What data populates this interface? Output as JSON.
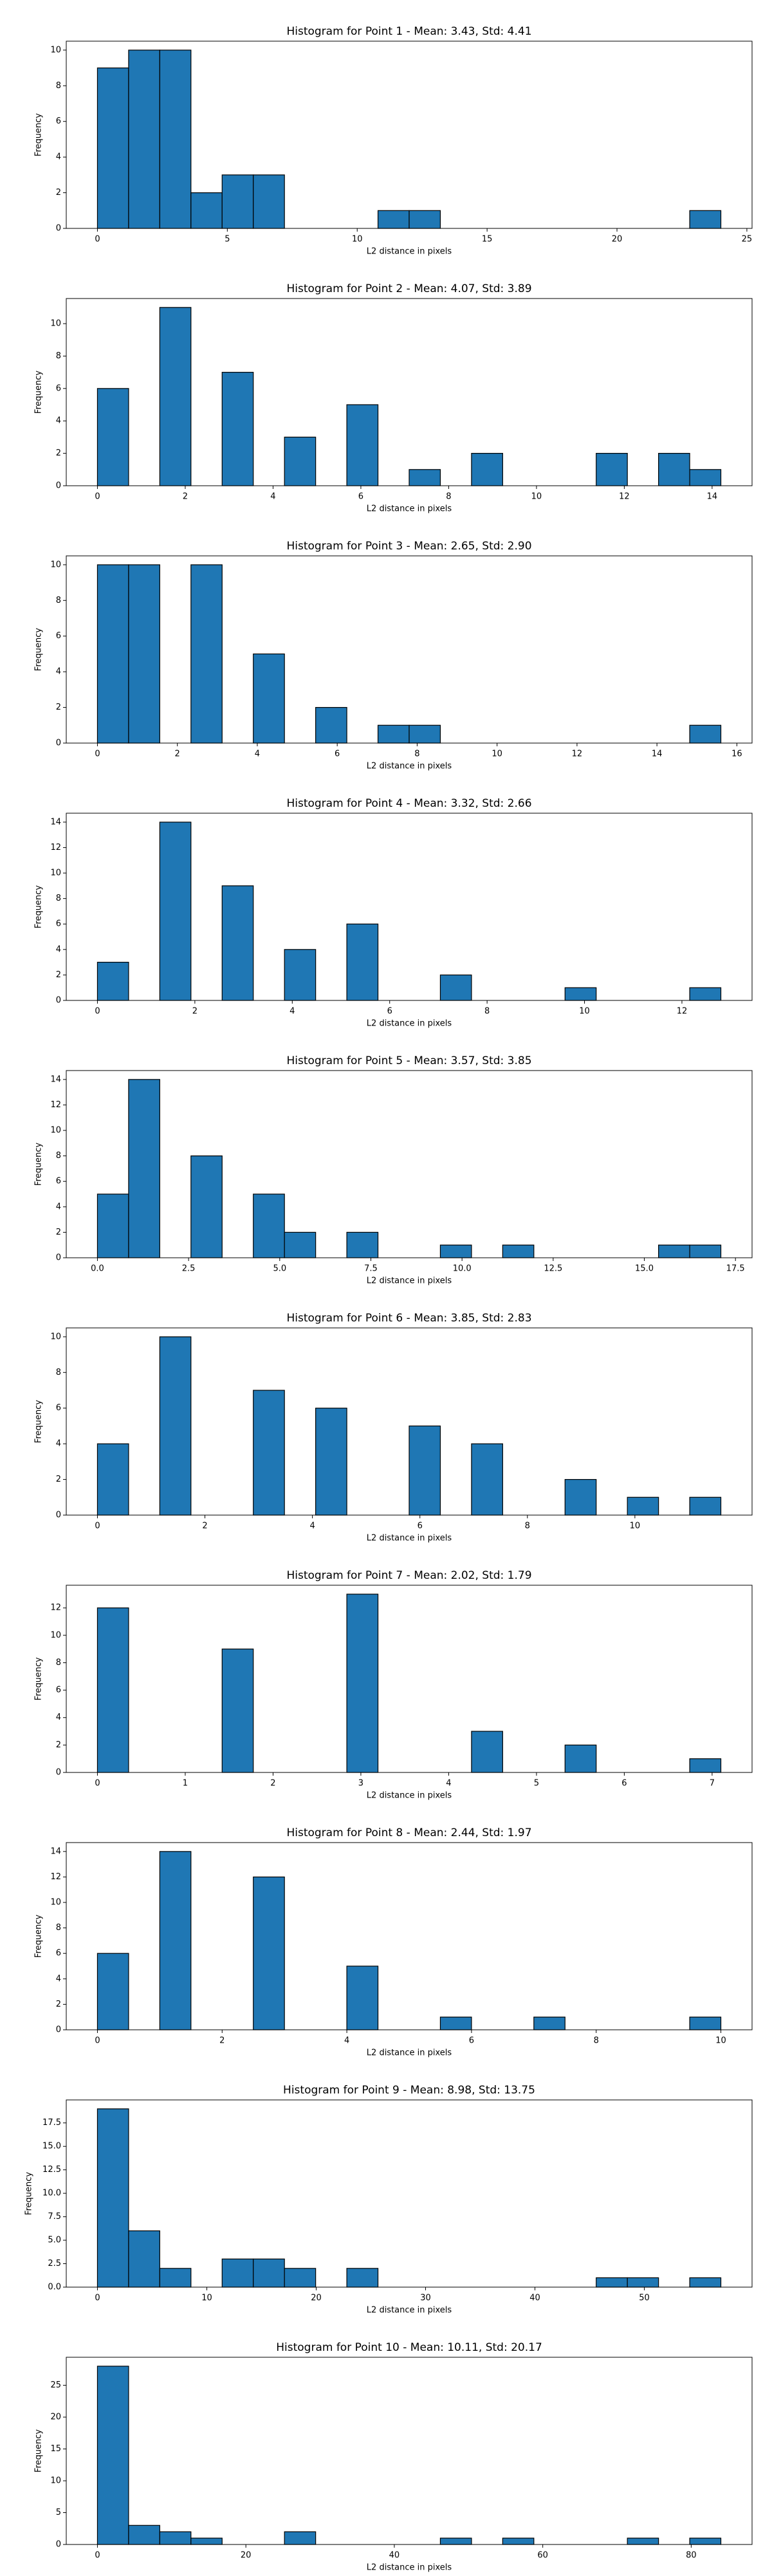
{
  "chart_data": [
    {
      "type": "histogram",
      "title": "Histogram for Point 1 - Mean: 3.43, Std: 4.41",
      "xlabel": "L2 distance in pixels",
      "ylabel": "Frequency",
      "color": "#1f77b4",
      "edge_color": "#000000",
      "bins": [
        0,
        1.2,
        2.4,
        3.6,
        4.8,
        6,
        7.2,
        8.4,
        9.6,
        10.8,
        12,
        13.2,
        14.4,
        15.6,
        16.8,
        18,
        19.2,
        20.4,
        21.6,
        22.8,
        24
      ],
      "counts": [
        9,
        10,
        10,
        2,
        3,
        3,
        0,
        0,
        0,
        1,
        1,
        0,
        0,
        0,
        0,
        0,
        0,
        0,
        0,
        1
      ],
      "xlim": [
        -1.2,
        25.2
      ],
      "xticks": [
        0,
        5,
        10,
        15,
        20,
        25
      ],
      "ylim": [
        0,
        10.5
      ],
      "yticks": [
        0,
        2,
        4,
        6,
        8,
        10
      ]
    },
    {
      "type": "histogram",
      "title": "Histogram for Point 2 - Mean: 4.07, Std: 3.89",
      "xlabel": "L2 distance in pixels",
      "ylabel": "Frequency",
      "color": "#1f77b4",
      "edge_color": "#000000",
      "bins": [
        0,
        0.71,
        1.42,
        2.13,
        2.84,
        3.55,
        4.26,
        4.97,
        5.68,
        6.39,
        7.1,
        7.81,
        8.52,
        9.23,
        9.94,
        10.65,
        11.36,
        12.07,
        12.78,
        13.49,
        14.2
      ],
      "counts": [
        6,
        0,
        11,
        0,
        7,
        0,
        3,
        0,
        5,
        0,
        1,
        0,
        2,
        0,
        0,
        0,
        2,
        0,
        2,
        1
      ],
      "xlim": [
        -0.71,
        14.91
      ],
      "xticks": [
        0,
        2,
        4,
        6,
        8,
        10,
        12,
        14
      ],
      "ylim": [
        0,
        11.55
      ],
      "yticks": [
        0,
        2,
        4,
        6,
        8,
        10
      ]
    },
    {
      "type": "histogram",
      "title": "Histogram for Point 3 - Mean: 2.65, Std: 2.90",
      "xlabel": "L2 distance in pixels",
      "ylabel": "Frequency",
      "color": "#1f77b4",
      "edge_color": "#000000",
      "bins": [
        0,
        0.78,
        1.56,
        2.34,
        3.12,
        3.9,
        4.68,
        5.46,
        6.24,
        7.02,
        7.8,
        8.58,
        9.36,
        10.14,
        10.92,
        11.7,
        12.48,
        13.26,
        14.04,
        14.82,
        15.6
      ],
      "counts": [
        10,
        10,
        0,
        10,
        0,
        5,
        0,
        2,
        0,
        1,
        1,
        0,
        0,
        0,
        0,
        0,
        0,
        0,
        0,
        1
      ],
      "xlim": [
        -0.78,
        16.38
      ],
      "xticks": [
        0,
        2,
        4,
        6,
        8,
        10,
        12,
        14,
        16
      ],
      "ylim": [
        0,
        10.5
      ],
      "yticks": [
        0,
        2,
        4,
        6,
        8,
        10
      ]
    },
    {
      "type": "histogram",
      "title": "Histogram for Point 4 - Mean: 3.32, Std: 2.66",
      "xlabel": "L2 distance in pixels",
      "ylabel": "Frequency",
      "color": "#1f77b4",
      "edge_color": "#000000",
      "bins": [
        0,
        0.64,
        1.28,
        1.92,
        2.56,
        3.2,
        3.84,
        4.48,
        5.12,
        5.76,
        6.4,
        7.04,
        7.68,
        8.32,
        8.96,
        9.6,
        10.24,
        10.88,
        11.52,
        12.16,
        12.8
      ],
      "counts": [
        3,
        0,
        14,
        0,
        9,
        0,
        4,
        0,
        6,
        0,
        0,
        2,
        0,
        0,
        0,
        1,
        0,
        0,
        0,
        1
      ],
      "xlim": [
        -0.64,
        13.44
      ],
      "xticks": [
        0,
        2,
        4,
        6,
        8,
        10,
        12
      ],
      "ylim": [
        0,
        14.7
      ],
      "yticks": [
        0,
        2,
        4,
        6,
        8,
        10,
        12,
        14
      ]
    },
    {
      "type": "histogram",
      "title": "Histogram for Point 5 - Mean: 3.57, Std: 3.85",
      "xlabel": "L2 distance in pixels",
      "ylabel": "Frequency",
      "color": "#1f77b4",
      "edge_color": "#000000",
      "bins": [
        0,
        0.855,
        1.71,
        2.565,
        3.42,
        4.275,
        5.13,
        5.985,
        6.84,
        7.695,
        8.55,
        9.405,
        10.26,
        11.115,
        11.97,
        12.825,
        13.68,
        14.535,
        15.39,
        16.245,
        17.1
      ],
      "counts": [
        5,
        14,
        0,
        8,
        0,
        5,
        2,
        0,
        2,
        0,
        0,
        1,
        0,
        1,
        0,
        0,
        0,
        0,
        1,
        1
      ],
      "xlim": [
        -0.855,
        17.955
      ],
      "xticks": [
        {
          "value": 0,
          "label": "0.0"
        },
        2.5,
        {
          "value": 5,
          "label": "5.0"
        },
        7.5,
        {
          "value": 10,
          "label": "10.0"
        },
        12.5,
        {
          "value": 15,
          "label": "15.0"
        },
        17.5
      ],
      "ylim": [
        0,
        14.7
      ],
      "yticks": [
        0,
        2,
        4,
        6,
        8,
        10,
        12,
        14
      ]
    },
    {
      "type": "histogram",
      "title": "Histogram for Point 6 - Mean: 3.85, Std: 2.83",
      "xlabel": "L2 distance in pixels",
      "ylabel": "Frequency",
      "color": "#1f77b4",
      "edge_color": "#000000",
      "bins": [
        0,
        0.58,
        1.16,
        1.74,
        2.32,
        2.9,
        3.48,
        4.06,
        4.64,
        5.22,
        5.8,
        6.38,
        6.96,
        7.54,
        8.12,
        8.7,
        9.28,
        9.86,
        10.44,
        11.02,
        11.6
      ],
      "counts": [
        4,
        0,
        10,
        0,
        0,
        7,
        0,
        6,
        0,
        0,
        5,
        0,
        4,
        0,
        0,
        2,
        0,
        1,
        0,
        1
      ],
      "xlim": [
        -0.58,
        12.18
      ],
      "xticks": [
        0,
        2,
        4,
        6,
        8,
        10
      ],
      "ylim": [
        0,
        10.5
      ],
      "yticks": [
        0,
        2,
        4,
        6,
        8,
        10
      ]
    },
    {
      "type": "histogram",
      "title": "Histogram for Point 7 - Mean: 2.02, Std: 1.79",
      "xlabel": "L2 distance in pixels",
      "ylabel": "Frequency",
      "color": "#1f77b4",
      "edge_color": "#000000",
      "bins": [
        0,
        0.355,
        0.71,
        1.065,
        1.42,
        1.775,
        2.13,
        2.485,
        2.84,
        3.195,
        3.55,
        3.905,
        4.26,
        4.615,
        4.97,
        5.325,
        5.68,
        6.035,
        6.39,
        6.745,
        7.1
      ],
      "counts": [
        12,
        0,
        0,
        0,
        9,
        0,
        0,
        0,
        13,
        0,
        0,
        0,
        3,
        0,
        0,
        2,
        0,
        0,
        0,
        1
      ],
      "xlim": [
        -0.355,
        7.455
      ],
      "xticks": [
        0,
        1,
        2,
        3,
        4,
        5,
        6,
        7
      ],
      "ylim": [
        0,
        13.65
      ],
      "yticks": [
        0,
        2,
        4,
        6,
        8,
        10,
        12
      ]
    },
    {
      "type": "histogram",
      "title": "Histogram for Point 8 - Mean: 2.44, Std: 1.97",
      "xlabel": "L2 distance in pixels",
      "ylabel": "Frequency",
      "color": "#1f77b4",
      "edge_color": "#000000",
      "bins": [
        0,
        0.5,
        1,
        1.5,
        2,
        2.5,
        3,
        3.5,
        4,
        4.5,
        5,
        5.5,
        6,
        6.5,
        7,
        7.5,
        8,
        8.5,
        9,
        9.5,
        10
      ],
      "counts": [
        6,
        0,
        14,
        0,
        0,
        12,
        0,
        0,
        5,
        0,
        0,
        1,
        0,
        0,
        1,
        0,
        0,
        0,
        0,
        1
      ],
      "xlim": [
        -0.5,
        10.5
      ],
      "xticks": [
        0,
        2,
        4,
        6,
        8,
        10
      ],
      "ylim": [
        0,
        14.7
      ],
      "yticks": [
        0,
        2,
        4,
        6,
        8,
        10,
        12,
        14
      ]
    },
    {
      "type": "histogram",
      "title": "Histogram for Point 9 - Mean: 8.98, Std: 13.75",
      "xlabel": "L2 distance in pixels",
      "ylabel": "Frequency",
      "color": "#1f77b4",
      "edge_color": "#000000",
      "bins": [
        0,
        2.85,
        5.7,
        8.55,
        11.4,
        14.25,
        17.1,
        19.95,
        22.8,
        25.65,
        28.5,
        31.35,
        34.2,
        37.05,
        39.9,
        42.75,
        45.6,
        48.45,
        51.3,
        54.15,
        57
      ],
      "counts": [
        19,
        6,
        2,
        0,
        3,
        3,
        2,
        0,
        2,
        0,
        0,
        0,
        0,
        0,
        0,
        0,
        1,
        1,
        0,
        1
      ],
      "xlim": [
        -2.85,
        59.85
      ],
      "xticks": [
        0,
        10,
        20,
        30,
        40,
        50
      ],
      "ylim": [
        0,
        19.95
      ],
      "yticks": [
        {
          "value": 0,
          "label": "0.0"
        },
        2.5,
        {
          "value": 5,
          "label": "5.0"
        },
        7.5,
        {
          "value": 10,
          "label": "10.0"
        },
        12.5,
        {
          "value": 15,
          "label": "15.0"
        },
        17.5
      ]
    },
    {
      "type": "histogram",
      "title": "Histogram for Point 10 - Mean: 10.11, Std: 20.17",
      "xlabel": "L2 distance in pixels",
      "ylabel": "Frequency",
      "color": "#1f77b4",
      "edge_color": "#000000",
      "bins": [
        0,
        4.2,
        8.4,
        12.6,
        16.8,
        21,
        25.2,
        29.4,
        33.6,
        37.8,
        42,
        46.2,
        50.4,
        54.6,
        58.8,
        63,
        67.2,
        71.4,
        75.6,
        79.8,
        84
      ],
      "counts": [
        28,
        3,
        2,
        1,
        0,
        0,
        2,
        0,
        0,
        0,
        0,
        1,
        0,
        1,
        0,
        0,
        0,
        1,
        0,
        1
      ],
      "xlim": [
        -4.2,
        88.2
      ],
      "xticks": [
        0,
        20,
        40,
        60,
        80
      ],
      "ylim": [
        0,
        29.4
      ],
      "yticks": [
        0,
        5,
        10,
        15,
        20,
        25
      ]
    }
  ]
}
